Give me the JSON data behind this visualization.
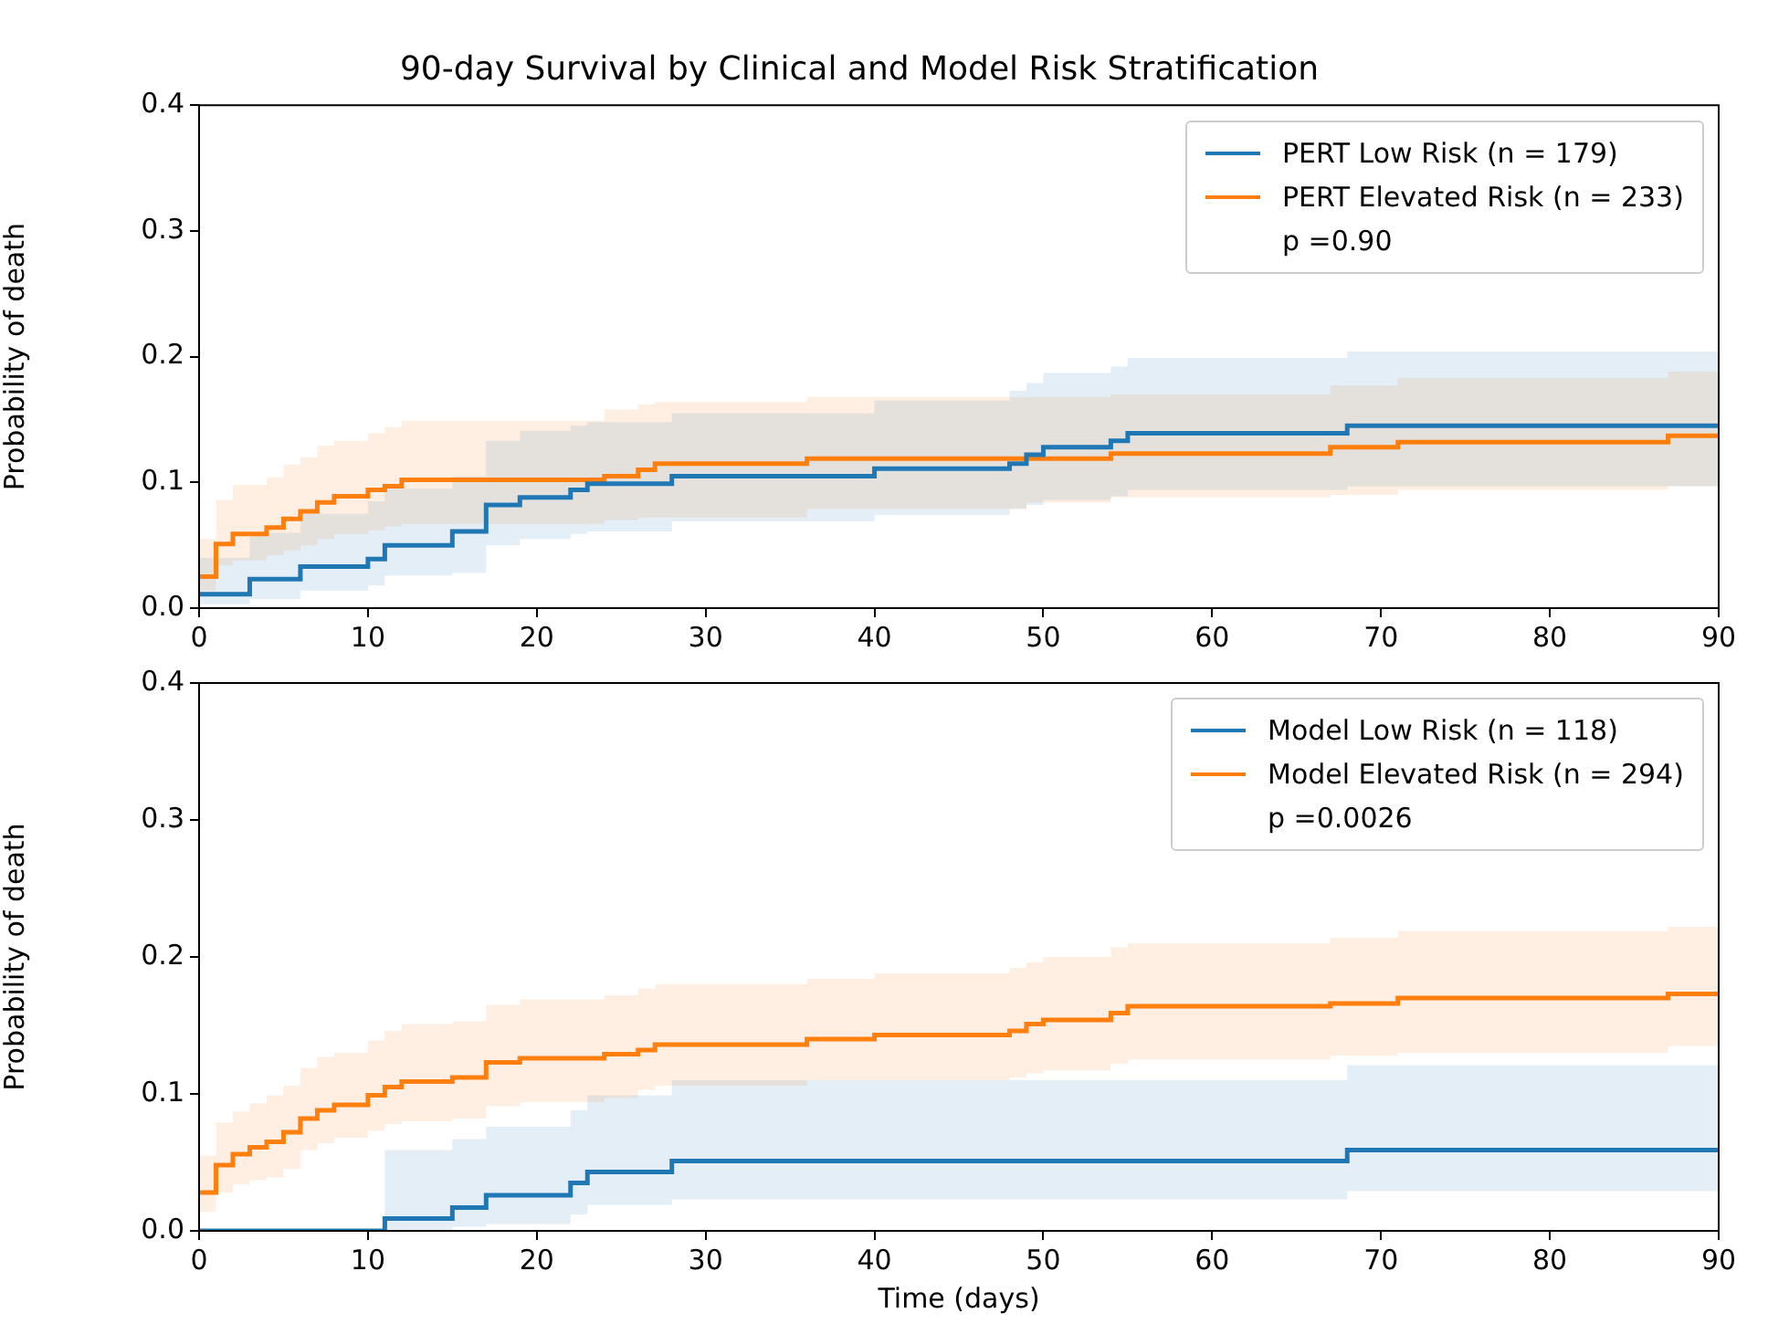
{
  "chart_data": [
    {
      "type": "step",
      "title": "90-day Survival by Clinical and Model Risk Stratification",
      "ylabel": "Probability of death",
      "legend": "top right",
      "annotations": [
        "p =0.90"
      ],
      "xlim": [
        0,
        90
      ],
      "xticks": [
        0,
        10,
        20,
        30,
        40,
        50,
        60,
        70,
        80,
        90
      ],
      "ylim": [
        0,
        0.4
      ],
      "yticks": [
        {
          "value": 0,
          "label": "0.0"
        },
        {
          "value": 0.1,
          "label": "0.1"
        },
        {
          "value": 0.2,
          "label": "0.2"
        },
        {
          "value": 0.3,
          "label": "0.3"
        },
        {
          "value": 0.4,
          "label": "0.4"
        }
      ],
      "series": [
        {
          "name": "PERT Low Risk (n = 179)",
          "color": "#1f77b4",
          "x": [
            0,
            3,
            6,
            10,
            11,
            15,
            17,
            19,
            22,
            23,
            28,
            40,
            48,
            49,
            50,
            54,
            55,
            68,
            90
          ],
          "values": [
            0.011,
            0.023,
            0.033,
            0.039,
            0.05,
            0.061,
            0.082,
            0.088,
            0.094,
            0.099,
            0.105,
            0.111,
            0.115,
            0.122,
            0.128,
            0.133,
            0.139,
            0.145,
            0.145
          ],
          "lower": [
            0.003,
            0.007,
            0.014,
            0.018,
            0.026,
            0.028,
            0.05,
            0.055,
            0.059,
            0.061,
            0.069,
            0.074,
            0.079,
            0.082,
            0.086,
            0.089,
            0.094,
            0.097,
            0.097
          ],
          "upper": [
            0.04,
            0.06,
            0.075,
            0.085,
            0.095,
            0.105,
            0.133,
            0.141,
            0.145,
            0.148,
            0.155,
            0.165,
            0.173,
            0.179,
            0.187,
            0.192,
            0.199,
            0.204,
            0.204
          ]
        },
        {
          "name": "PERT Elevated Risk (n = 233)",
          "color": "#ff7f0e",
          "x": [
            0,
            1,
            2,
            4,
            5,
            6,
            7,
            8,
            10,
            11,
            12,
            24,
            26,
            27,
            36,
            49,
            54,
            67,
            71,
            87,
            90
          ],
          "values": [
            0.025,
            0.051,
            0.059,
            0.064,
            0.071,
            0.077,
            0.084,
            0.089,
            0.094,
            0.097,
            0.102,
            0.105,
            0.11,
            0.115,
            0.119,
            0.119,
            0.123,
            0.128,
            0.132,
            0.137,
            0.137
          ],
          "lower": [
            0.014,
            0.034,
            0.038,
            0.042,
            0.046,
            0.05,
            0.055,
            0.059,
            0.062,
            0.065,
            0.067,
            0.07,
            0.072,
            0.072,
            0.079,
            0.084,
            0.088,
            0.09,
            0.094,
            0.097,
            0.097
          ],
          "upper": [
            0.055,
            0.086,
            0.098,
            0.104,
            0.114,
            0.12,
            0.129,
            0.133,
            0.139,
            0.144,
            0.149,
            0.158,
            0.162,
            0.164,
            0.168,
            0.168,
            0.17,
            0.177,
            0.183,
            0.188,
            0.188
          ]
        }
      ]
    },
    {
      "type": "step",
      "xlabel": "Time (days)",
      "ylabel": "Probability of death",
      "legend": "top right",
      "annotations": [
        "p =0.0026"
      ],
      "xlim": [
        0,
        90
      ],
      "xticks": [
        0,
        10,
        20,
        30,
        40,
        50,
        60,
        70,
        80,
        90
      ],
      "ylim": [
        0,
        0.4
      ],
      "yticks": [
        {
          "value": 0,
          "label": "0.0"
        },
        {
          "value": 0.1,
          "label": "0.1"
        },
        {
          "value": 0.2,
          "label": "0.2"
        },
        {
          "value": 0.3,
          "label": "0.3"
        },
        {
          "value": 0.4,
          "label": "0.4"
        }
      ],
      "series": [
        {
          "name": "Model Low Risk (n = 118)",
          "color": "#1f77b4",
          "x": [
            0,
            11,
            15,
            17,
            22,
            23,
            28,
            68,
            90
          ],
          "values": [
            0,
            0.009,
            0.017,
            0.026,
            0.035,
            0.043,
            0.051,
            0.059,
            0.059
          ],
          "lower": [
            0,
            0,
            0.003,
            0.005,
            0.012,
            0.019,
            0.023,
            0.029,
            0.029
          ],
          "upper": [
            0,
            0.059,
            0.067,
            0.076,
            0.088,
            0.099,
            0.11,
            0.121,
            0.121
          ]
        },
        {
          "name": "Model Elevated Risk (n = 294)",
          "color": "#ff7f0e",
          "x": [
            0,
            1,
            2,
            3,
            4,
            5,
            6,
            7,
            8,
            10,
            11,
            12,
            15,
            17,
            19,
            24,
            26,
            27,
            36,
            40,
            48,
            49,
            50,
            54,
            55,
            67,
            71,
            87,
            90
          ],
          "values": [
            0.028,
            0.048,
            0.056,
            0.061,
            0.065,
            0.072,
            0.082,
            0.088,
            0.092,
            0.099,
            0.105,
            0.109,
            0.112,
            0.123,
            0.126,
            0.129,
            0.132,
            0.136,
            0.14,
            0.143,
            0.146,
            0.151,
            0.154,
            0.159,
            0.164,
            0.166,
            0.17,
            0.173,
            0.173
          ],
          "lower": [
            0.014,
            0.028,
            0.034,
            0.037,
            0.039,
            0.045,
            0.059,
            0.064,
            0.068,
            0.073,
            0.078,
            0.08,
            0.082,
            0.091,
            0.094,
            0.097,
            0.103,
            0.106,
            0.11,
            0.11,
            0.112,
            0.115,
            0.117,
            0.122,
            0.125,
            0.128,
            0.13,
            0.135,
            0.135
          ],
          "upper": [
            0.055,
            0.079,
            0.087,
            0.093,
            0.099,
            0.106,
            0.119,
            0.127,
            0.13,
            0.139,
            0.146,
            0.151,
            0.153,
            0.165,
            0.169,
            0.172,
            0.177,
            0.18,
            0.184,
            0.188,
            0.192,
            0.196,
            0.2,
            0.207,
            0.21,
            0.214,
            0.219,
            0.222,
            0.222
          ]
        }
      ]
    }
  ]
}
